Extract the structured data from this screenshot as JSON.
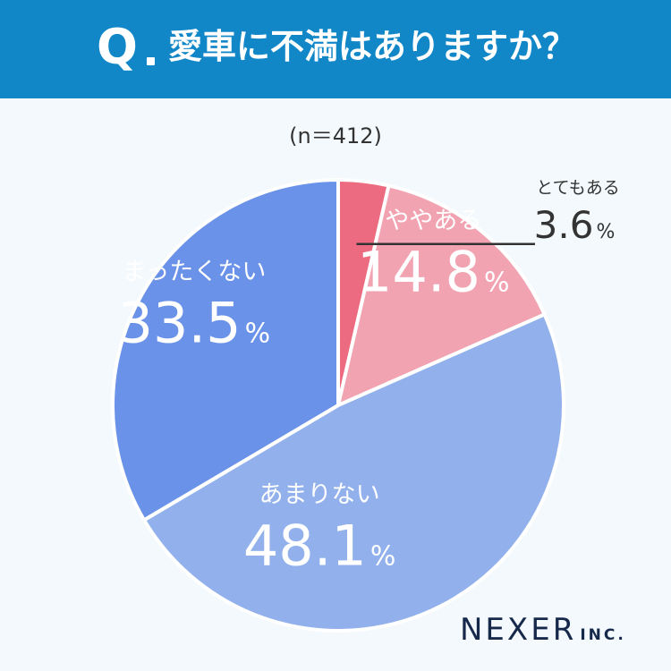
{
  "header": {
    "q_mark": "Q",
    "question": "愛車に不満はありますか？"
  },
  "sample_label": "(n＝412)",
  "chart_data": {
    "type": "pie",
    "title": "愛車に不満はありますか？",
    "n_label": "(n＝412)",
    "slices": [
      {
        "label": "とてもある",
        "value": 3.6,
        "display": "3.6",
        "unit": "%",
        "color": "#ec6b80",
        "text_color": "#333333"
      },
      {
        "label": "ややある",
        "value": 14.8,
        "display": "14.8",
        "unit": "%",
        "color": "#f2a3b1",
        "text_color": "#ffffff"
      },
      {
        "label": "あまりない",
        "value": 48.1,
        "display": "48.1",
        "unit": "%",
        "color": "#92b1ec",
        "text_color": "#ffffff"
      },
      {
        "label": "まったくない",
        "value": 33.5,
        "display": "33.5",
        "unit": "%",
        "color": "#6a92e8",
        "text_color": "#ffffff"
      }
    ],
    "start_angle_deg": 0,
    "direction": "clockwise"
  },
  "logo": {
    "main": "NEXER",
    "sub": "INC."
  }
}
